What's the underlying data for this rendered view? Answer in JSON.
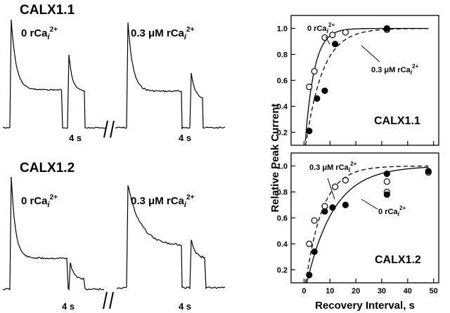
{
  "traces": {
    "top": {
      "title": "CALX1.1",
      "left_label": "0 rCa",
      "right_label": "0.3 μM rCa",
      "label_sub": "i",
      "label_sup": "2+",
      "left_time": "4 s",
      "right_time": "4 s"
    },
    "bottom": {
      "title": "CALX1.2",
      "left_label": "0 rCa",
      "right_label": "0.3 μM rCa",
      "label_sub": "i",
      "label_sup": "2+",
      "left_time": "4 s",
      "right_time": "4 s"
    }
  },
  "chart_data": [
    {
      "type": "scatter",
      "panel_label": "CALX1.1",
      "xlim": [
        -5,
        52
      ],
      "ylim": [
        0.1,
        1.1
      ],
      "yticks": [
        "0.2",
        "0.4",
        "0.6",
        "0.8",
        "1.0"
      ],
      "xticks": [
        "0",
        "10",
        "20",
        "30",
        "40",
        "50"
      ],
      "series": [
        {
          "name": "0 rCa",
          "marker": "open-circle",
          "fit": "solid",
          "x": [
            2,
            4,
            8,
            11,
            16,
            32
          ],
          "y": [
            0.55,
            0.67,
            0.93,
            0.95,
            0.97,
            0.99
          ]
        },
        {
          "name": "0.3 μM rCa",
          "marker": "filled-circle",
          "fit": "dashed",
          "x": [
            2,
            5,
            8,
            12,
            32
          ],
          "y": [
            0.21,
            0.46,
            0.52,
            0.88,
            1.0
          ]
        }
      ],
      "annotations": [
        {
          "text": "0 rCa",
          "sub": "i",
          "sup": "2+"
        },
        {
          "text": "0.3 μM rCa",
          "sub": "i",
          "sup": "2+"
        }
      ]
    },
    {
      "type": "scatter",
      "panel_label": "CALX1.2",
      "xlim": [
        -5,
        52
      ],
      "ylim": [
        0.1,
        1.1
      ],
      "yticks": [
        "0.2",
        "0.4",
        "0.6",
        "0.8",
        "1.0"
      ],
      "xticks": [
        "0",
        "10",
        "20",
        "30",
        "40",
        "50"
      ],
      "xlabel": "Recovery Interval, s",
      "series": [
        {
          "name": "0.3 μM rCa",
          "marker": "open-circle",
          "fit": "dashed",
          "x": [
            2,
            4,
            8,
            12,
            16,
            32,
            32,
            48
          ],
          "y": [
            0.4,
            0.58,
            0.69,
            0.84,
            0.89,
            0.88,
            0.8,
            0.95
          ]
        },
        {
          "name": "0 rCa",
          "marker": "filled-circle",
          "fit": "solid",
          "x": [
            2,
            4,
            8,
            11,
            16,
            32,
            32,
            48
          ],
          "y": [
            0.16,
            0.34,
            0.65,
            0.68,
            0.7,
            0.94,
            0.78,
            0.96
          ]
        }
      ],
      "annotations": [
        {
          "text": "0.3 μM rCa",
          "sub": "i",
          "sup": "2+"
        },
        {
          "text": "0 rCa",
          "sub": "i",
          "sup": "2+"
        }
      ]
    }
  ],
  "shared_ylabel": "Relative Peak Current"
}
